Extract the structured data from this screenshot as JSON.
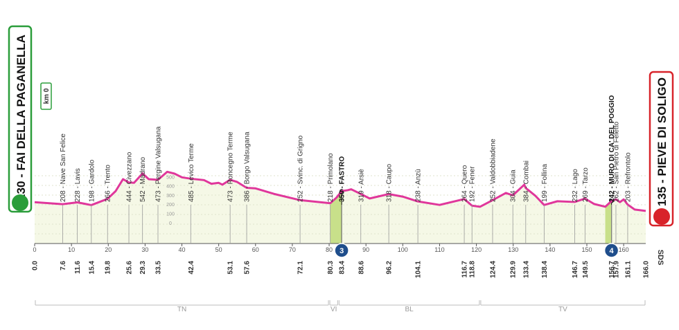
{
  "chart_data": {
    "type": "profile",
    "start_label": "230 - FAI DELLA PAGANELLA",
    "finish_label": "135 - PIEVE DI SOLIGO",
    "km_zero": "km 0",
    "corner_label": "SDS",
    "line_color": "#e0379b",
    "area_color": "#f5f8e6",
    "climb_color": "#c8e08a",
    "x": [
      0,
      7.6,
      11.6,
      15.4,
      19.8,
      22,
      24,
      25.6,
      27,
      29.3,
      31,
      33.5,
      36,
      38,
      40,
      42.4,
      46,
      48,
      50,
      51,
      53.1,
      55,
      57.6,
      60,
      65,
      72.1,
      80.3,
      82,
      83.4,
      85,
      86,
      88.6,
      91,
      96.2,
      100,
      104.1,
      110,
      116.7,
      118.8,
      121,
      124.4,
      128,
      129.9,
      133,
      133.4,
      136,
      138.4,
      142,
      146.7,
      149.5,
      152,
      155,
      156.7,
      157.9,
      159,
      160,
      161.1,
      163,
      166
    ],
    "values": [
      230,
      208,
      228,
      198,
      266,
      350,
      480,
      444,
      440,
      542,
      480,
      473,
      560,
      540,
      500,
      485,
      470,
      430,
      440,
      420,
      473,
      450,
      386,
      380,
      320,
      252,
      218,
      280,
      350,
      360,
      370,
      319,
      270,
      318,
      290,
      238,
      200,
      264,
      192,
      180,
      252,
      330,
      304,
      420,
      384,
      300,
      199,
      240,
      232,
      269,
      210,
      180,
      242,
      262,
      230,
      260,
      203,
      150,
      135
    ],
    "xlim": [
      0,
      166
    ],
    "xticks": [
      0,
      10,
      20,
      30,
      40,
      50,
      60,
      70,
      80,
      90,
      100,
      110,
      120,
      130,
      140,
      150,
      160
    ],
    "ylim": [
      -220,
      2000
    ],
    "yticks": [
      0,
      100,
      200,
      300,
      400,
      500
    ],
    "waypoints": [
      {
        "km": {
          "value": 0,
          "label": "0.0"
        }
      },
      {
        "km": 7.6,
        "label": "208 - Nave San Felice"
      },
      {
        "km": 11.6,
        "label": "228 - Lavis"
      },
      {
        "km": 15.4,
        "label": "198 - Gardolo"
      },
      {
        "km": 19.8,
        "label": "266 - Trento"
      },
      {
        "km": 25.6,
        "label": "444 - Civezzano"
      },
      {
        "km": 29.3,
        "label": "542 - Madrano"
      },
      {
        "km": 33.5,
        "label": "473 - Pergine Valsugana"
      },
      {
        "km": 42.4,
        "label": "485 - Levico Terme"
      },
      {
        "km": 53.1,
        "label": "473 - Roncegno Terme"
      },
      {
        "km": 57.6,
        "label": "386 - Borgo Valsugana"
      },
      {
        "km": 72.1,
        "label": "252 - Svinc. di Grigno"
      },
      {
        "km": 80.3,
        "label": "218 - Primolano"
      },
      {
        "km": 83.4,
        "label": "350 - FASTRO",
        "bold": true
      },
      {
        "km": 88.6,
        "label": "319 - Arsiè"
      },
      {
        "km": 96.2,
        "label": "318 - Caupo"
      },
      {
        "km": 104.1,
        "label": "238 - Anzù"
      },
      {
        "km": 116.7,
        "label": "264 - Quero"
      },
      {
        "km": 118.8,
        "label": "192 - Fener"
      },
      {
        "km": 124.4,
        "label": "252 - Valdobbiadene"
      },
      {
        "km": 129.9,
        "label": "304 - Guia"
      },
      {
        "km": 133.4,
        "label": "384 - Combai"
      },
      {
        "km": 138.4,
        "label": "199 - Follina"
      },
      {
        "km": 146.7,
        "label": "232 - Lago"
      },
      {
        "km": 149.5,
        "label": "269 - Tarzo"
      },
      {
        "km": 156.7,
        "label": "242 - MURO DI CA' DEL POGGIO",
        "bold": true
      },
      {
        "km": 157.9,
        "label": "262 - San Pietro di Feletto"
      },
      {
        "km": 161.1,
        "label": "203 - Refrontolo"
      },
      {
        "km": {
          "value": 166,
          "label": "166.0"
        }
      }
    ],
    "climbs": [
      {
        "label": "3",
        "start_km": 80.3,
        "km": 83.4
      },
      {
        "label": "4",
        "start_km": 155,
        "km": 156.7
      }
    ],
    "regions": [
      {
        "label": "TN",
        "start_km": 0,
        "end_km": 80
      },
      {
        "label": "VI",
        "start_km": 80,
        "end_km": 82.5
      },
      {
        "label": "BL",
        "start_km": 82.5,
        "end_km": 121
      },
      {
        "label": "TV",
        "start_km": 121,
        "end_km": 166
      }
    ]
  }
}
